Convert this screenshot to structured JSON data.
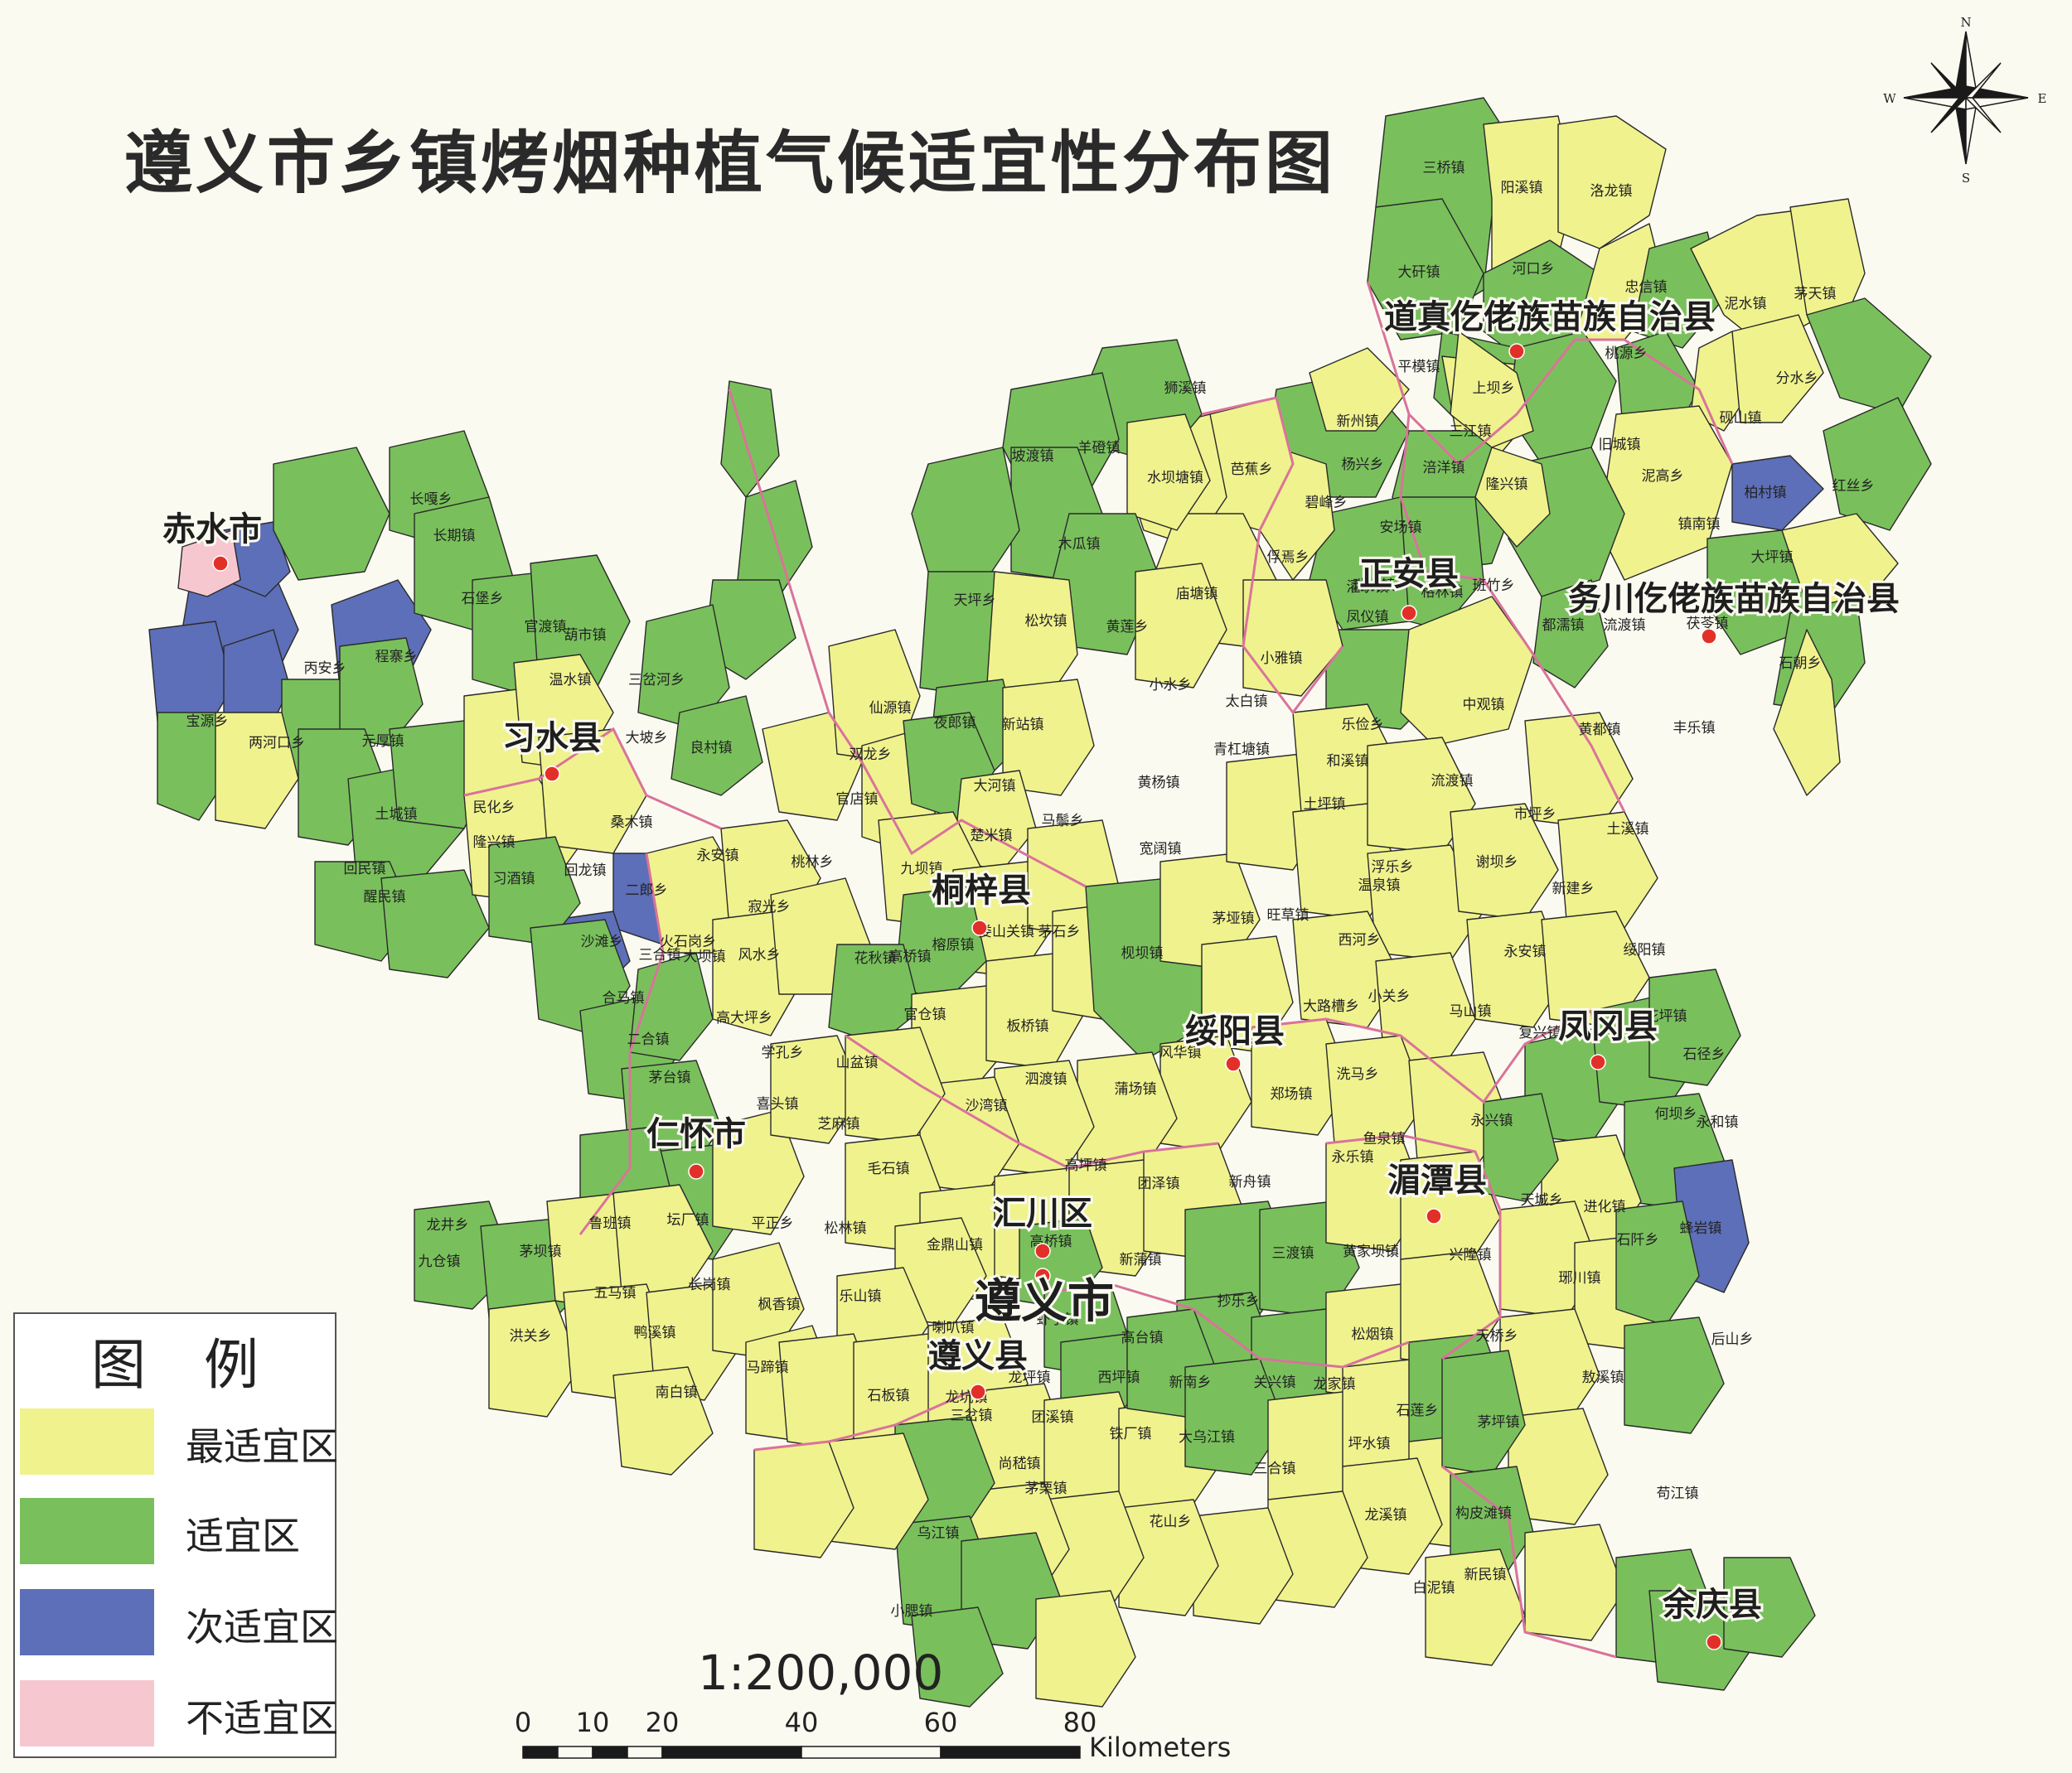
{
  "title": "遵义市乡镇烤烟种植气候适宜性分布图",
  "colors": {
    "most_suitable": "#f0f28e",
    "suitable": "#79c05c",
    "sub_suitable": "#5d6fb8",
    "unsuitable": "#f7c7d0",
    "town_border": "#2a2a2a",
    "county_border": "#d9739a",
    "capital_marker": "#e23028"
  },
  "legend": {
    "title_a": "图",
    "title_b": "例",
    "items": [
      {
        "label": "最适宜区",
        "color": "#f0f28e"
      },
      {
        "label": "适宜区",
        "color": "#79c05c"
      },
      {
        "label": "次适宜区",
        "color": "#5d6fb8"
      },
      {
        "label": "不适宜区",
        "color": "#f7c7d0"
      }
    ]
  },
  "north_arrow": {
    "n": "N",
    "s": "S",
    "e": "E",
    "w": "W"
  },
  "scale": {
    "ratio": "1:200,000",
    "ticks": [
      "0",
      "10",
      "20",
      "40",
      "60",
      "80"
    ],
    "unit": "Kilometers"
  },
  "county_labels": [
    "道真仡佬族苗族自治县",
    "务川仡佬族苗族自治县",
    "正安县",
    "赤水市",
    "习水县",
    "桐梓县",
    "绥阳县",
    "凤冈县",
    "湄潭县",
    "仁怀市",
    "汇川区",
    "遵义市",
    "遵义县",
    "余庆县"
  ],
  "town_labels": [
    "三桥镇",
    "阳溪镇",
    "洛龙镇",
    "大矸镇",
    "河口乡",
    "忠信镇",
    "泥水镇",
    "茅天镇",
    "平模镇",
    "上坝乡",
    "桃源乡",
    "分水乡",
    "新州镇",
    "三江镇",
    "旧城镇",
    "涪洋镇",
    "狮溪镇",
    "水坝塘镇",
    "芭蕉乡",
    "碧峰乡",
    "杨兴乡",
    "隆兴镇",
    "砚山镇",
    "泥高乡",
    "柏村镇",
    "红丝乡",
    "坡渡镇",
    "羊磴镇",
    "木瓜镇",
    "庙塘镇",
    "俘焉乡",
    "安场镇",
    "濯水镇",
    "镇南镇",
    "大坪镇",
    "茯苓镇",
    "流渡镇",
    "天坪乡",
    "松坎镇",
    "黄莲乡",
    "小雅镇",
    "瑞溪镇",
    "格林镇",
    "凤仪镇",
    "班竹乡",
    "都濡镇",
    "石朝乡",
    "长嘎乡",
    "长期镇",
    "石堡乡",
    "官渡镇",
    "葫市镇",
    "程寨乡",
    "三岔河乡",
    "大坡乡",
    "温水镇",
    "仙源镇",
    "夜郎镇",
    "新站镇",
    "小水乡",
    "太白镇",
    "中观镇",
    "和溪镇",
    "乐俭乡",
    "黄都镇",
    "丰乐镇",
    "丙安乡",
    "元厚镇",
    "宝源乡",
    "两河口乡",
    "良村镇",
    "双龙乡",
    "官店镇",
    "大河镇",
    "黄杨镇",
    "青杠塘镇",
    "土坪镇",
    "流渡镇",
    "市坪乡",
    "土溪镇",
    "民化乡",
    "土城镇",
    "桑木镇",
    "永安镇",
    "隆兴镇",
    "楚米镇",
    "马鬃乡",
    "宽阔镇",
    "桃林乡",
    "九坝镇",
    "浮乐乡",
    "谢坝乡",
    "新建乡",
    "回民镇",
    "醒民镇",
    "习酒镇",
    "回龙镇",
    "二郎乡",
    "寂光乡",
    "花秋镇",
    "高桥镇",
    "娄山关镇",
    "茅石乡",
    "旺草镇",
    "温泉镇",
    "西河乡",
    "永安镇",
    "绥阳镇",
    "枧坝镇",
    "大路槽乡",
    "小关乡",
    "马山镇",
    "花坪镇",
    "石径乡",
    "沙滩乡",
    "三合镇",
    "火石岗乡",
    "风水乡",
    "榕原镇",
    "官仓镇",
    "板桥镇",
    "风华镇",
    "茅垭镇",
    "复兴镇",
    "合马镇",
    "大坝镇",
    "高大坪乡",
    "学孔乡",
    "山盆镇",
    "泗渡镇",
    "蒲场镇",
    "郑场镇",
    "洗马乡",
    "何坝乡",
    "永和镇",
    "二合镇",
    "喜头镇",
    "芝麻镇",
    "沙湾镇",
    "鱼泉镇",
    "永兴镇",
    "茅台镇",
    "毛石镇",
    "高坪镇",
    "团泽镇",
    "新舟镇",
    "永乐镇",
    "天城乡",
    "进化镇",
    "蜂岩镇",
    "鲁班镇",
    "坛厂镇",
    "平正乡",
    "松林镇",
    "金鼎山镇",
    "高桥镇",
    "新蒲镇",
    "三渡镇",
    "黄家坝镇",
    "兴隆镇",
    "琊川镇",
    "石阡乡",
    "龙井乡",
    "茅坝镇",
    "九仓镇",
    "五马镇",
    "长岗镇",
    "枫香镇",
    "乐山镇",
    "喇叭镇",
    "虾子镇",
    "高台镇",
    "抄乐乡",
    "松烟镇",
    "天桥乡",
    "后山乡",
    "洪关乡",
    "鸭溪镇",
    "马蹄镇",
    "石板镇",
    "龙坑镇",
    "龙坪镇",
    "西坪镇",
    "新南乡",
    "关兴镇",
    "龙家镇",
    "敖溪镇",
    "茅坪镇",
    "石莲乡",
    "坪水镇",
    "南白镇",
    "三岔镇",
    "团溪镇",
    "铁厂镇",
    "大乌江镇",
    "三合镇",
    "苟江镇",
    "尚嵇镇",
    "茅栗镇",
    "花山乡",
    "构皮滩镇",
    "龙溪镇",
    "新民镇",
    "乌江镇",
    "小腮镇",
    "白泥镇"
  ]
}
